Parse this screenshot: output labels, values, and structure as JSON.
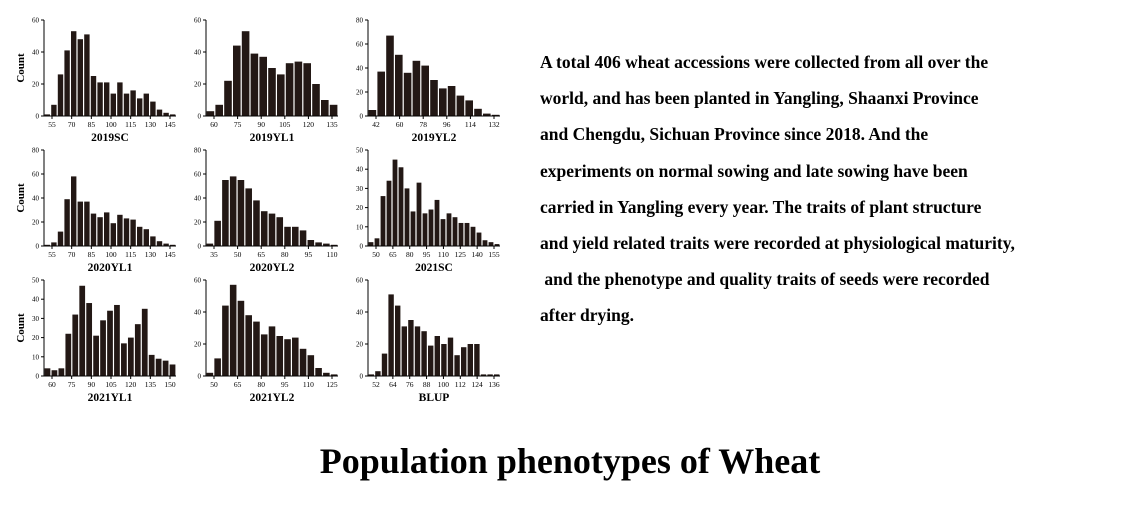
{
  "description": {
    "lines": [
      "A total 406 wheat accessions were collected from all over the",
      "world, and has been planted in Yangling, Shaanxi Province",
      "and Chengdu, Sichuan Province since 2018. And the",
      "experiments on normal sowing and late sowing have been",
      "carried in Yangling every year. The traits of plant structure",
      "and yield related traits were recorded at physiological maturity,",
      " and the phenotype and quality traits of seeds were recorded",
      "after drying."
    ]
  },
  "main_title": "Population phenotypes of Wheat",
  "chart_data": [
    {
      "type": "bar",
      "title": "2019SC",
      "ylabel": "Count",
      "ylim": [
        0,
        60
      ],
      "yticks": [
        0,
        20,
        40,
        60
      ],
      "xticks": [
        "55",
        "70",
        "85",
        "100",
        "115",
        "130",
        "145"
      ],
      "values": [
        1,
        7,
        26,
        41,
        53,
        48,
        51,
        25,
        21,
        21,
        14,
        21,
        14,
        16,
        11,
        14,
        9,
        4,
        2,
        1
      ]
    },
    {
      "type": "bar",
      "title": "2019YL1",
      "ylabel": "",
      "ylim": [
        0,
        60
      ],
      "yticks": [
        0,
        20,
        40,
        60
      ],
      "xticks": [
        "60",
        "75",
        "90",
        "105",
        "120",
        "135"
      ],
      "values": [
        3,
        7,
        22,
        44,
        53,
        39,
        37,
        30,
        26,
        33,
        34,
        33,
        20,
        10,
        7
      ]
    },
    {
      "type": "bar",
      "title": "2019YL2",
      "ylabel": "",
      "ylim": [
        0,
        80
      ],
      "yticks": [
        0,
        20,
        40,
        60,
        80
      ],
      "xticks": [
        "42",
        "60",
        "78",
        "96",
        "114",
        "132"
      ],
      "values": [
        5,
        37,
        67,
        51,
        36,
        46,
        42,
        30,
        23,
        25,
        17,
        13,
        6,
        2,
        1
      ]
    },
    {
      "type": "bar",
      "title": "2020YL1",
      "ylabel": "Count",
      "ylim": [
        0,
        80
      ],
      "yticks": [
        0,
        20,
        40,
        60,
        80
      ],
      "xticks": [
        "55",
        "70",
        "85",
        "100",
        "115",
        "130",
        "145"
      ],
      "values": [
        1,
        3,
        12,
        39,
        58,
        37,
        37,
        27,
        24,
        28,
        19,
        26,
        23,
        22,
        16,
        14,
        8,
        4,
        2,
        1
      ]
    },
    {
      "type": "bar",
      "title": "2020YL2",
      "ylabel": "",
      "ylim": [
        0,
        80
      ],
      "yticks": [
        0,
        20,
        40,
        60,
        80
      ],
      "xticks": [
        "35",
        "50",
        "65",
        "80",
        "95",
        "110"
      ],
      "values": [
        2,
        21,
        55,
        58,
        55,
        48,
        38,
        29,
        27,
        24,
        16,
        16,
        13,
        5,
        3,
        2,
        1
      ]
    },
    {
      "type": "bar",
      "title": "2021SC",
      "ylabel": "",
      "ylim": [
        0,
        50
      ],
      "yticks": [
        0,
        10,
        20,
        30,
        40,
        50
      ],
      "xticks": [
        "50",
        "65",
        "80",
        "95",
        "110",
        "125",
        "140",
        "155"
      ],
      "values": [
        2,
        4,
        26,
        34,
        45,
        41,
        30,
        18,
        33,
        17,
        19,
        24,
        14,
        17,
        15,
        12,
        12,
        10,
        7,
        3,
        2,
        1
      ]
    },
    {
      "type": "bar",
      "title": "2021YL1",
      "ylabel": "Count",
      "ylim": [
        0,
        50
      ],
      "yticks": [
        0,
        10,
        20,
        30,
        40,
        50
      ],
      "xticks": [
        "60",
        "75",
        "90",
        "105",
        "120",
        "135",
        "150"
      ],
      "values": [
        4,
        3,
        4,
        22,
        32,
        47,
        38,
        21,
        29,
        34,
        37,
        17,
        20,
        27,
        35,
        11,
        9,
        8,
        6
      ]
    },
    {
      "type": "bar",
      "title": "2021YL2",
      "ylabel": "",
      "ylim": [
        0,
        60
      ],
      "yticks": [
        0,
        20,
        40,
        60
      ],
      "xticks": [
        "50",
        "65",
        "80",
        "95",
        "110",
        "125"
      ],
      "values": [
        2,
        11,
        44,
        57,
        47,
        38,
        34,
        26,
        31,
        25,
        23,
        24,
        17,
        13,
        5,
        2,
        1
      ]
    },
    {
      "type": "bar",
      "title": "BLUP",
      "ylabel": "",
      "ylim": [
        0,
        60
      ],
      "yticks": [
        0,
        20,
        40,
        60
      ],
      "xticks": [
        "52",
        "64",
        "76",
        "88",
        "100",
        "112",
        "124",
        "136"
      ],
      "values": [
        1,
        3,
        14,
        51,
        44,
        31,
        35,
        31,
        28,
        19,
        25,
        20,
        24,
        13,
        18,
        20,
        20,
        1,
        1,
        1
      ]
    }
  ]
}
